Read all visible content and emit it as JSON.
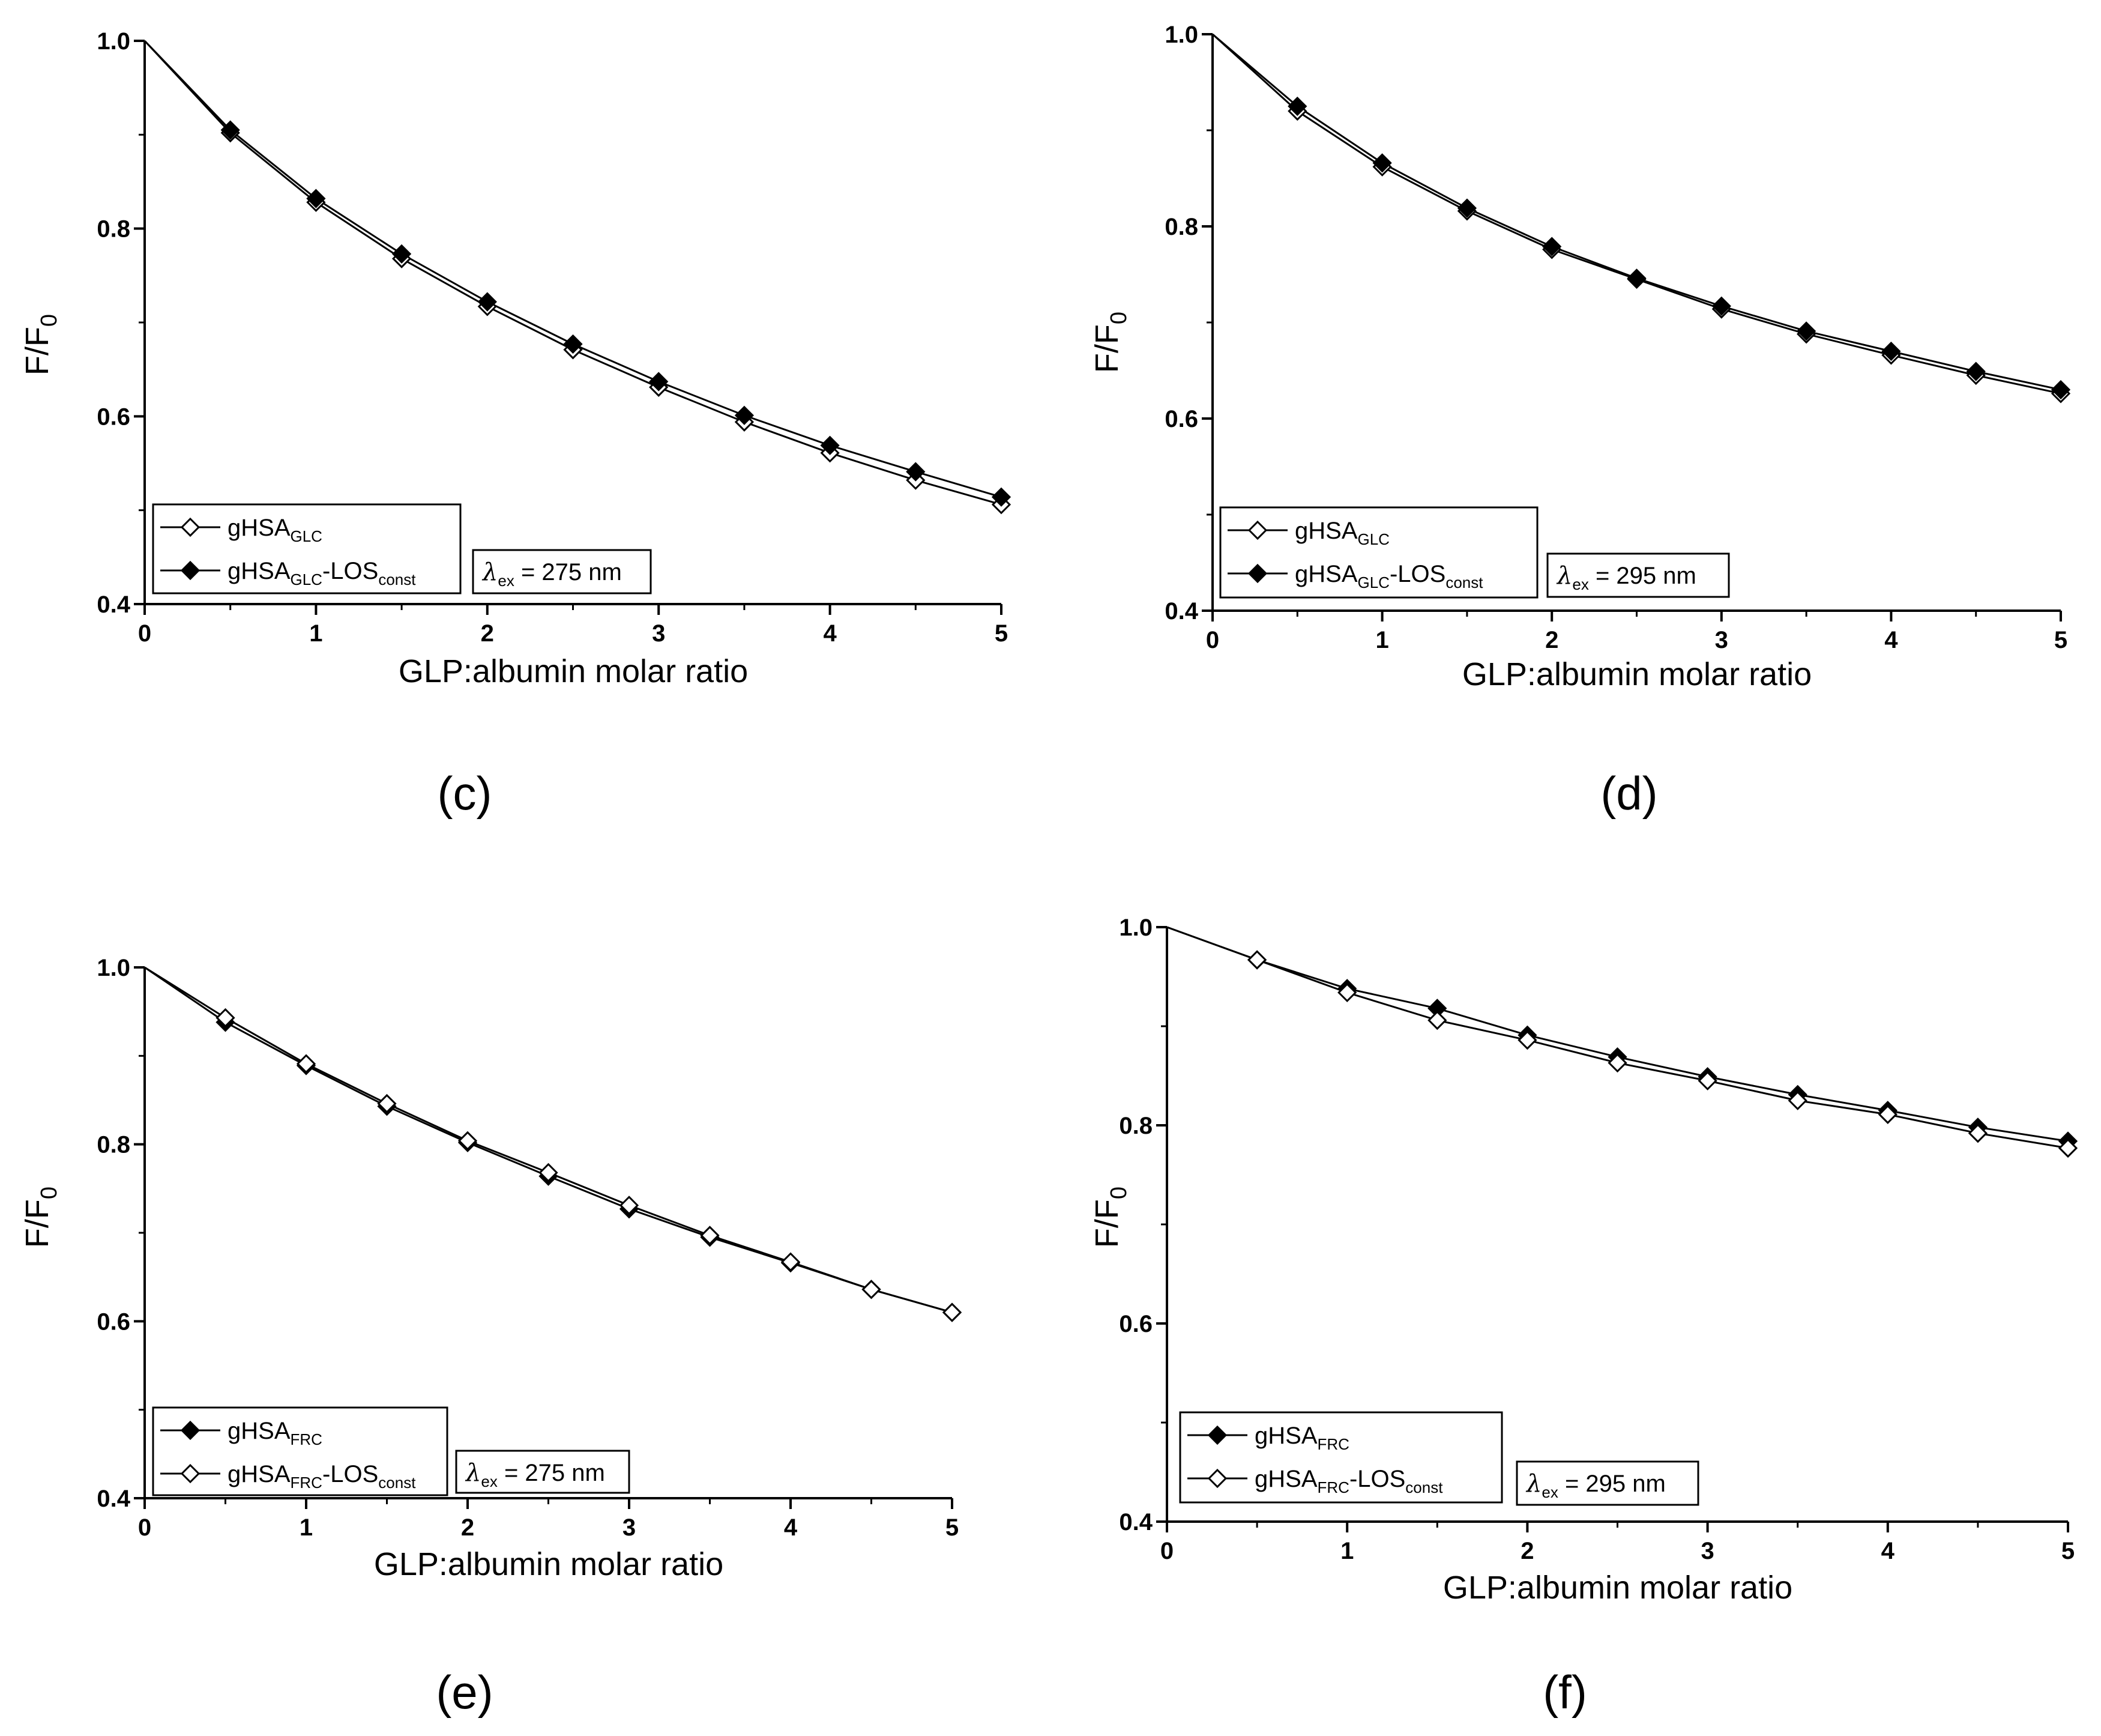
{
  "figure": {
    "panel_labels": [
      "(c)",
      "(d)",
      "(e)",
      "(f)"
    ]
  },
  "chart_data": [
    {
      "id": "c",
      "panel_label": "(c)",
      "type": "line",
      "xlabel": "GLP:albumin molar ratio",
      "ylabel": {
        "main": "F/F",
        "sub": "0"
      },
      "xlim": [
        0,
        5
      ],
      "ylim": [
        0.4,
        1.0
      ],
      "xticks": [
        "0",
        "1",
        "2",
        "3",
        "4",
        "5"
      ],
      "yticks": [
        "0.4",
        "0.6",
        "0.8",
        "1.0"
      ],
      "x": [
        0,
        0.5,
        1,
        1.5,
        2,
        2.5,
        3,
        3.5,
        4,
        4.5,
        5
      ],
      "series": [
        {
          "name": "gHSA",
          "name_sub": "GLC",
          "name_suffix": "",
          "name_suffix_sub": "",
          "marker": "open-diamond",
          "values": [
            1.0,
            0.902,
            0.828,
            0.768,
            0.717,
            0.671,
            0.631,
            0.594,
            0.561,
            0.532,
            0.506
          ]
        },
        {
          "name": "gHSA",
          "name_sub": "GLC",
          "name_suffix": "-LOS",
          "name_suffix_sub": "const",
          "marker": "filled-diamond",
          "values": [
            1.0,
            0.905,
            0.832,
            0.773,
            0.722,
            0.677,
            0.637,
            0.601,
            0.569,
            0.541,
            0.514
          ]
        }
      ],
      "annotation": {
        "lambda": "λ",
        "sub": "ex",
        "text": " = 275 nm"
      },
      "legend_position": "bottom-left"
    },
    {
      "id": "d",
      "panel_label": "(d)",
      "type": "line",
      "xlabel": "GLP:albumin molar ratio",
      "ylabel": {
        "main": "F/F",
        "sub": "0"
      },
      "xlim": [
        0,
        5
      ],
      "ylim": [
        0.4,
        1.0
      ],
      "xticks": [
        "0",
        "1",
        "2",
        "3",
        "4",
        "5"
      ],
      "yticks": [
        "0.4",
        "0.6",
        "0.8",
        "1.0"
      ],
      "x": [
        0,
        0.5,
        1,
        1.5,
        2,
        2.5,
        3,
        3.5,
        4,
        4.5,
        5
      ],
      "series": [
        {
          "name": "gHSA",
          "name_sub": "GLC",
          "name_suffix": "",
          "name_suffix_sub": "",
          "marker": "open-diamond",
          "values": [
            1.0,
            0.92,
            0.862,
            0.816,
            0.776,
            0.745,
            0.714,
            0.688,
            0.666,
            0.645,
            0.626
          ]
        },
        {
          "name": "gHSA",
          "name_sub": "GLC",
          "name_suffix": "-LOS",
          "name_suffix_sub": "const",
          "marker": "filled-diamond",
          "values": [
            1.0,
            0.925,
            0.866,
            0.819,
            0.779,
            0.746,
            0.717,
            0.691,
            0.67,
            0.649,
            0.63
          ]
        }
      ],
      "annotation": {
        "lambda": "λ",
        "sub": "ex",
        "text": " = 295 nm"
      },
      "legend_position": "bottom-left"
    },
    {
      "id": "e",
      "panel_label": "(e)",
      "type": "line",
      "xlabel": "GLP:albumin molar ratio",
      "ylabel": {
        "main": "F/F",
        "sub": "0"
      },
      "xlim": [
        0,
        5
      ],
      "ylim": [
        0.4,
        1.0
      ],
      "xticks": [
        "0",
        "1",
        "2",
        "3",
        "4",
        "5"
      ],
      "yticks": [
        "0.4",
        "0.6",
        "0.8",
        "1.0"
      ],
      "x": [
        0,
        0.5,
        1,
        1.5,
        2,
        2.5,
        3,
        3.5,
        4,
        4.5,
        5
      ],
      "series": [
        {
          "name": "gHSA",
          "name_sub": "FRC",
          "name_suffix": "",
          "name_suffix_sub": "",
          "marker": "filled-diamond",
          "values": [
            1.0,
            0.938,
            0.889,
            0.843,
            0.802,
            0.764,
            0.727,
            0.695,
            0.666,
            0.636,
            0.61
          ]
        },
        {
          "name": "gHSA",
          "name_sub": "FRC",
          "name_suffix": "-LOS",
          "name_suffix_sub": "const",
          "marker": "open-diamond",
          "values": [
            1.0,
            0.943,
            0.891,
            0.846,
            0.804,
            0.768,
            0.731,
            0.697,
            0.667,
            0.636,
            0.61
          ]
        }
      ],
      "annotation": {
        "lambda": "λ",
        "sub": "ex",
        "text": " = 275 nm"
      },
      "legend_position": "bottom-left"
    },
    {
      "id": "f",
      "panel_label": "(f)",
      "type": "line",
      "xlabel": "GLP:albumin molar ratio",
      "ylabel": {
        "main": "F/F",
        "sub": "0"
      },
      "xlim": [
        0,
        5
      ],
      "ylim": [
        0.4,
        1.0
      ],
      "xticks": [
        "0",
        "1",
        "2",
        "3",
        "4",
        "5"
      ],
      "yticks": [
        "0.4",
        "0.6",
        "0.8",
        "1.0"
      ],
      "x": [
        0,
        0.5,
        1,
        1.5,
        2,
        2.5,
        3,
        3.5,
        4,
        4.5,
        5
      ],
      "series": [
        {
          "name": "gHSA",
          "name_sub": "FRC",
          "name_suffix": "",
          "name_suffix_sub": "",
          "marker": "filled-diamond",
          "values": [
            1.0,
            0.967,
            0.938,
            0.918,
            0.891,
            0.869,
            0.849,
            0.831,
            0.815,
            0.798,
            0.784
          ]
        },
        {
          "name": "gHSA",
          "name_sub": "FRC",
          "name_suffix": "-LOS",
          "name_suffix_sub": "const",
          "marker": "open-diamond",
          "values": [
            1.0,
            0.967,
            0.934,
            0.906,
            0.886,
            0.863,
            0.845,
            0.825,
            0.811,
            0.792,
            0.777
          ]
        }
      ],
      "annotation": {
        "lambda": "λ",
        "sub": "ex",
        "text": " = 295 nm"
      },
      "legend_position": "bottom-left"
    }
  ]
}
